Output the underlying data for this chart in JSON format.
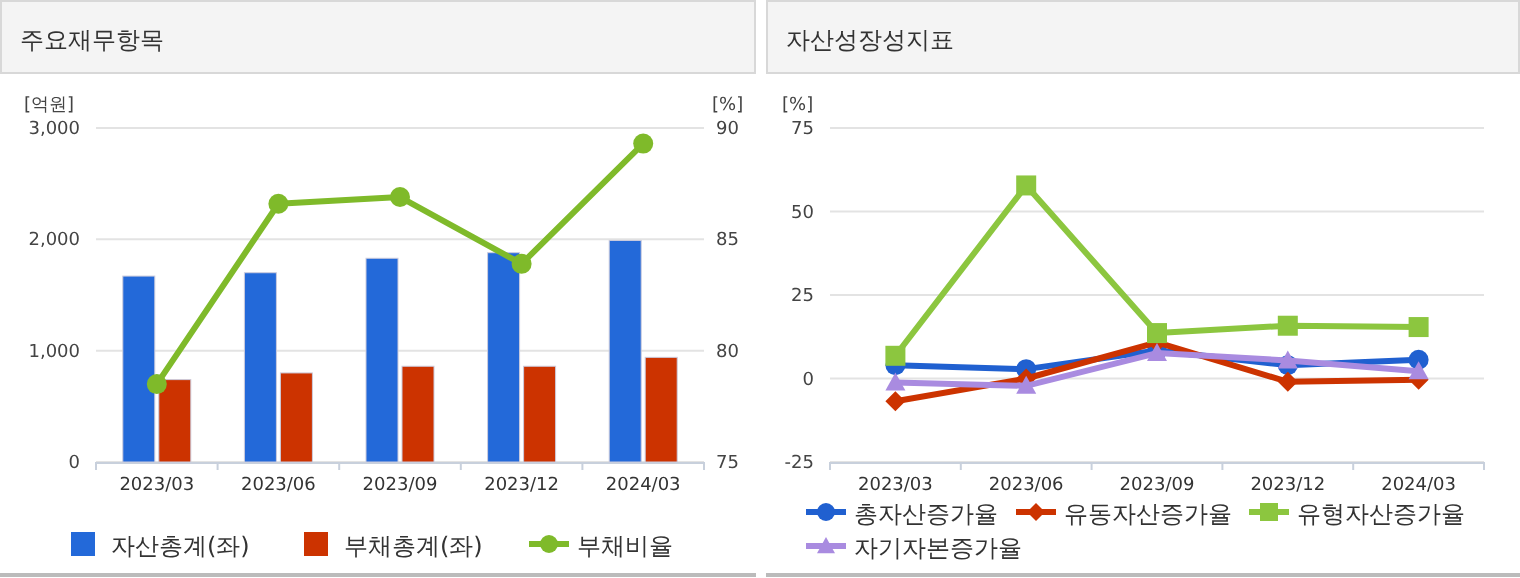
{
  "chart_data": [
    {
      "type": "bar",
      "title": "주요재무항목",
      "ylabel": "[억원]",
      "y2label": "[%]",
      "categories": [
        "2023/03",
        "2023/06",
        "2023/09",
        "2023/12",
        "2024/03"
      ],
      "series": [
        {
          "name": "자산총계(좌)",
          "type": "bar",
          "color": "#2369d9",
          "values": [
            1670,
            1700,
            1830,
            1880,
            1990
          ]
        },
        {
          "name": "부채총계(좌)",
          "type": "bar",
          "color": "#cc3300",
          "values": [
            740,
            800,
            860,
            860,
            940
          ]
        },
        {
          "name": "부채비율",
          "type": "line",
          "axis": "y2",
          "marker": "circle",
          "color": "#7fba2a",
          "values": [
            78.5,
            86.6,
            86.9,
            83.9,
            89.3
          ]
        }
      ],
      "ylim": [
        0,
        3000
      ],
      "yticks": [
        0,
        {
          "value": 1000,
          "label": "1,000"
        },
        {
          "value": 2000,
          "label": "2,000"
        },
        {
          "value": 3000,
          "label": "3,000"
        }
      ],
      "y2lim": [
        75,
        90
      ],
      "y2ticks": [
        75,
        80,
        85,
        90
      ],
      "grid": "y",
      "legend": "bottom"
    },
    {
      "type": "line",
      "title": "자산성장성지표",
      "ylabel": "[%]",
      "categories": [
        "2023/03",
        "2023/06",
        "2023/09",
        "2023/12",
        "2024/03"
      ],
      "series": [
        {
          "name": "총자산증가율",
          "marker": "circle",
          "color": "#2060d0",
          "values": [
            4,
            2.8,
            8.4,
            4,
            5.6
          ]
        },
        {
          "name": "유동자산증가율",
          "marker": "diamond",
          "color": "#cc3300",
          "values": [
            -6.8,
            0,
            10.8,
            -1,
            -0.4
          ]
        },
        {
          "name": "유형자산증가율",
          "marker": "square",
          "color": "#8cc63f",
          "values": [
            6.8,
            57.8,
            13.6,
            15.8,
            15.4
          ]
        },
        {
          "name": "자기자본증가율",
          "marker": "triangle",
          "color": "#a98be0",
          "values": [
            -1.2,
            -2.2,
            7.6,
            5.4,
            2.2
          ]
        }
      ],
      "ylim": [
        -25,
        75
      ],
      "yticks": [
        -25,
        0,
        25,
        50,
        75
      ],
      "grid": "y",
      "legend": "bottom"
    }
  ]
}
